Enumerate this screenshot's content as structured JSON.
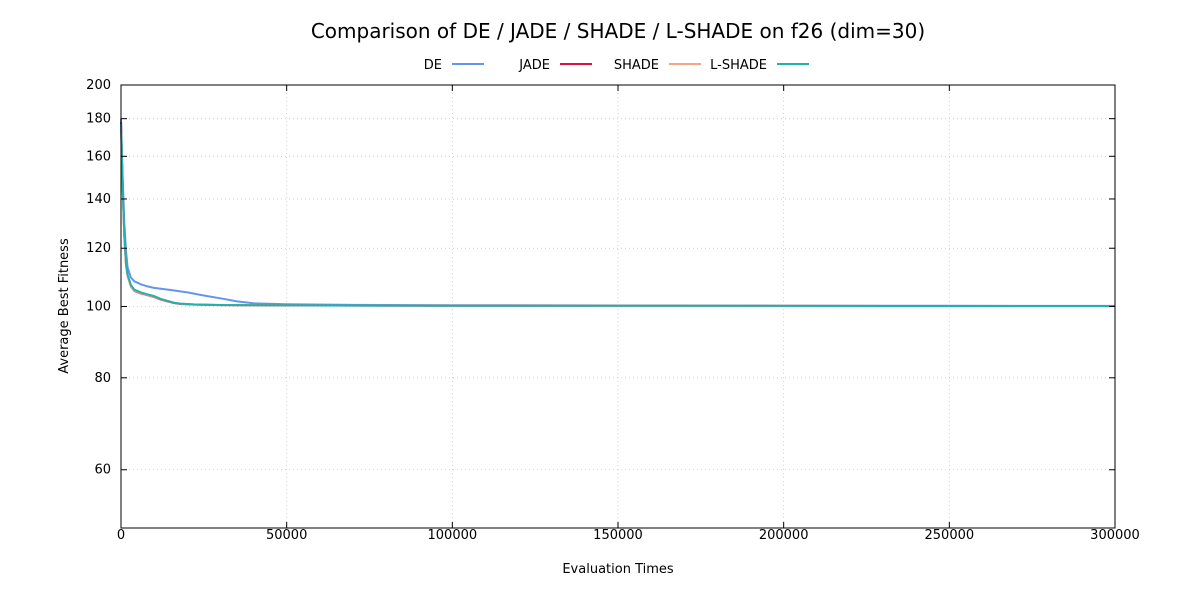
{
  "chart_data": {
    "type": "line",
    "title": "Comparison of DE / JADE / SHADE / L-SHADE on f26 (dim=30)",
    "xlabel": "Evaluation Times",
    "ylabel": "Average Best Fitness",
    "xlim": [
      0,
      300000
    ],
    "ylim": [
      50,
      200
    ],
    "yscale": "log",
    "grid": true,
    "legend_position": "top-center",
    "x_ticks": [
      0,
      50000,
      100000,
      150000,
      200000,
      250000,
      300000
    ],
    "y_ticks": [
      60,
      80,
      100,
      120,
      140,
      160,
      180,
      200
    ],
    "series": [
      {
        "name": "DE",
        "color": "#6495ed",
        "x": [
          0,
          500,
          1000,
          1500,
          2000,
          3000,
          4000,
          6000,
          8000,
          10000,
          15000,
          20000,
          25000,
          30000,
          35000,
          40000,
          50000,
          70000,
          100000,
          150000,
          200000,
          250000,
          300000
        ],
        "y": [
          180,
          150,
          130,
          119,
          113,
          109.5,
          108.2,
          107.2,
          106.5,
          106,
          105.3,
          104.5,
          103.5,
          102.6,
          101.6,
          101,
          100.7,
          100.5,
          100.4,
          100.3,
          100.25,
          100.22,
          100.2
        ]
      },
      {
        "name": "JADE",
        "color": "#dc143c",
        "x": [
          0,
          500,
          1000,
          1500,
          2000,
          3000,
          4000,
          6000,
          8000,
          10000,
          12000,
          14000,
          16000,
          18000,
          22000,
          30000,
          50000,
          100000,
          150000,
          200000,
          250000,
          300000
        ],
        "y": [
          178,
          145,
          125,
          114,
          110,
          106.5,
          105,
          104.2,
          103.6,
          103,
          102.2,
          101.6,
          101.1,
          100.8,
          100.6,
          100.45,
          100.35,
          100.25,
          100.2,
          100.18,
          100.16,
          100.15
        ]
      },
      {
        "name": "SHADE",
        "color": "#f4a582",
        "x": [
          0,
          500,
          1000,
          1500,
          2000,
          3000,
          4000,
          6000,
          8000,
          10000,
          12000,
          14000,
          16000,
          18000,
          22000,
          30000,
          50000,
          100000,
          150000,
          200000,
          250000,
          300000
        ],
        "y": [
          176,
          144,
          124,
          113.5,
          109.8,
          106.6,
          105.1,
          104.3,
          103.7,
          103.1,
          102.3,
          101.7,
          101.2,
          100.85,
          100.62,
          100.46,
          100.35,
          100.25,
          100.2,
          100.18,
          100.16,
          100.15
        ]
      },
      {
        "name": "L-SHADE",
        "color": "#20b2aa",
        "x": [
          0,
          500,
          1000,
          1500,
          2000,
          3000,
          4000,
          6000,
          8000,
          10000,
          12000,
          14000,
          16000,
          18000,
          22000,
          30000,
          50000,
          100000,
          150000,
          200000,
          250000,
          300000
        ],
        "y": [
          177,
          146,
          125,
          114.5,
          110.5,
          107,
          105.4,
          104.5,
          103.9,
          103.3,
          102.4,
          101.8,
          101.2,
          100.9,
          100.65,
          100.48,
          100.36,
          100.26,
          100.21,
          100.19,
          100.17,
          100.16
        ]
      }
    ]
  }
}
